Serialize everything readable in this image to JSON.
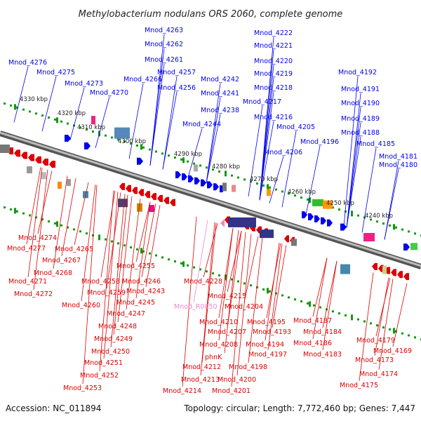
{
  "title": "Methylobacterium nodulans ORS 2060, complete genome",
  "footer": {
    "accession": "Accession: NC_011894",
    "summary": "Topology: circular; Length: 7,772,460 bp; Genes: 7,447"
  },
  "colors": {
    "forward": "#0000ee",
    "reverse": "#dd0000",
    "rna": "#ee88cc",
    "backbone": "#888888",
    "ticks": "#119911"
  },
  "kbp_labels": [
    "4330 kbp",
    "4320 kbp",
    "4310 kbp",
    "4300 kbp",
    "4290 kbp",
    "4280 kbp",
    "4270 kbp",
    "4260 kbp",
    "4250 kbp",
    "4240 kbp"
  ],
  "labels_top": [
    "Mnod_4276",
    "Mnod_4275",
    "Mnod_4273",
    "Mnod_4270",
    "Mnod_4266",
    "Mnod_4263",
    "Mnod_4262",
    "Mnod_4261",
    "Mnod_4257",
    "Mnod_4256",
    "Mnod_4244",
    "Mnod_4242",
    "Mnod_4241",
    "Mnod_4238",
    "Mnod_4222",
    "Mnod_4221",
    "Mnod_4220",
    "Mnod_4219",
    "Mnod_4218",
    "Mnod_4217",
    "Mnod_4216",
    "Mnod_4205",
    "Mnod_4206",
    "Mnod_4196",
    "Mnod_4192",
    "Mnod_4191",
    "Mnod_4190",
    "Mnod_4189",
    "Mnod_4188",
    "Mnod_4185",
    "Mnod_4181",
    "Mnod_4180"
  ],
  "labels_bottom": [
    "Mnod_4274",
    "Mnod_4277",
    "Mnod_4265",
    "Mnod_4267",
    "Mnod_4268",
    "Mnod_4271",
    "Mnod_4272",
    "Mnod_4255",
    "Mnod_4258",
    "Mnod_4246",
    "Mnod_4259",
    "Mnod_4243",
    "Mnod_4260",
    "Mnod_4245",
    "Mnod_4247",
    "Mnod_4248",
    "Mnod_4249",
    "Mnod_4250",
    "Mnod_4251",
    "Mnod_4252",
    "Mnod_4253",
    "Mnod_4228",
    "Mnod_4215",
    "Mnod_R0050",
    "Mnod_4204",
    "Mnod_4210",
    "Mnod_4207",
    "Mnod_4208",
    "phnK",
    "Mnod_4212",
    "Mnod_4213",
    "Mnod_4214",
    "Mnod_4195",
    "Mnod_4193",
    "Mnod_4194",
    "Mnod_4197",
    "Mnod_4198",
    "Mnod_4200",
    "Mnod_4201",
    "Mnod_4187",
    "Mnod_4184",
    "Mnod_4186",
    "Mnod_4183",
    "Mnod_4179",
    "Mnod_4169",
    "Mnod_4173",
    "Mnod_4174",
    "Mnod_4175"
  ]
}
